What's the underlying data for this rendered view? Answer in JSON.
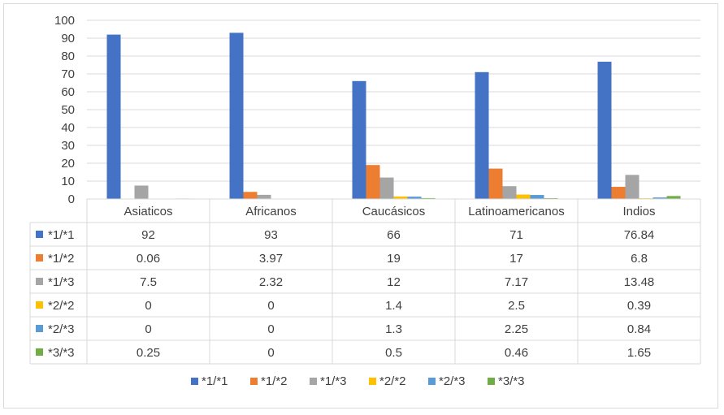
{
  "chart_data": {
    "type": "bar",
    "categories": [
      "Asiaticos",
      "Africanos",
      "Caucásicos",
      "Latinoamericanos",
      "Indios"
    ],
    "series": [
      {
        "name": "*1/*1",
        "color": "#4472c4",
        "values": [
          92,
          93,
          66,
          71,
          76.84
        ],
        "labels": [
          "92",
          "93",
          "66",
          "71",
          "76.84"
        ]
      },
      {
        "name": "*1/*2",
        "color": "#ed7d31",
        "values": [
          0.06,
          3.97,
          19,
          17,
          6.8
        ],
        "labels": [
          "0.06",
          "3.97",
          "19",
          "17",
          "6.8"
        ]
      },
      {
        "name": "*1/*3",
        "color": "#a5a5a5",
        "values": [
          7.5,
          2.32,
          12,
          7.17,
          13.48
        ],
        "labels": [
          "7.5",
          "2.32",
          "12",
          "7.17",
          "13.48"
        ]
      },
      {
        "name": "*2/*2",
        "color": "#ffc000",
        "values": [
          0,
          0,
          1.4,
          2.5,
          0.39
        ],
        "labels": [
          "0",
          "0",
          "1.4",
          "2.5",
          "0.39"
        ]
      },
      {
        "name": "*2/*3",
        "color": "#5b9bd5",
        "values": [
          0,
          0,
          1.3,
          2.25,
          0.84
        ],
        "labels": [
          "0",
          "0",
          "1.3",
          "2.25",
          "0.84"
        ]
      },
      {
        "name": "*3/*3",
        "color": "#70ad47",
        "values": [
          0.25,
          0,
          0.5,
          0.46,
          1.65
        ],
        "labels": [
          "0.25",
          "0",
          "0.5",
          "0.46",
          "1.65"
        ]
      }
    ],
    "ylim": [
      0,
      100
    ],
    "yticks": [
      "0",
      "10",
      "20",
      "30",
      "40",
      "50",
      "60",
      "70",
      "80",
      "90",
      "100"
    ],
    "grid": true,
    "data_table": true,
    "legend_position": "bottom",
    "title": "",
    "xlabel": "",
    "ylabel": ""
  }
}
